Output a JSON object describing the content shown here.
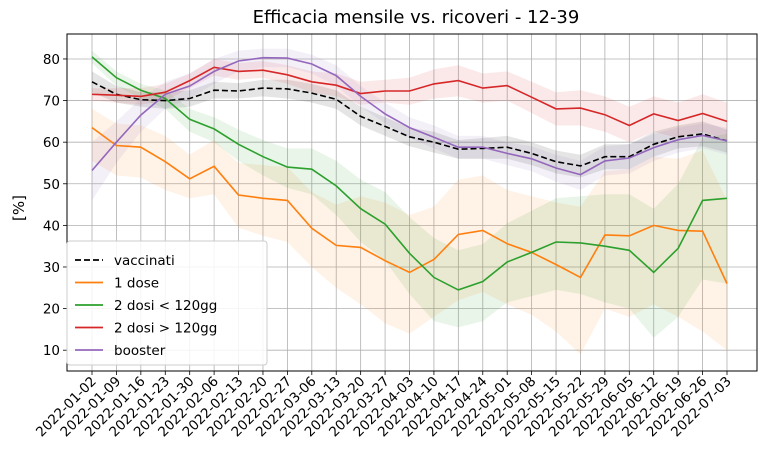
{
  "chart_data": {
    "type": "line",
    "title": "Efficacia mensile vs. ricoveri - 12-39",
    "xlabel": "",
    "ylabel": "[%]",
    "ylim": [
      5,
      86
    ],
    "yticks": [
      10,
      20,
      30,
      40,
      50,
      60,
      70,
      80
    ],
    "grid": true,
    "legend_position": "lower-left",
    "categories": [
      "2022-01-02",
      "2022-01-09",
      "2022-01-16",
      "2022-01-23",
      "2022-01-30",
      "2022-02-06",
      "2022-02-13",
      "2022-02-20",
      "2022-02-27",
      "2022-03-06",
      "2022-03-13",
      "2022-03-20",
      "2022-03-27",
      "2022-04-03",
      "2022-04-10",
      "2022-04-17",
      "2022-04-24",
      "2022-05-01",
      "2022-05-08",
      "2022-05-15",
      "2022-05-22",
      "2022-05-29",
      "2022-06-05",
      "2022-06-12",
      "2022-06-19",
      "2022-06-26",
      "2022-07-03"
    ],
    "series": [
      {
        "name": "vaccinati",
        "color": "#000000",
        "dashed": true,
        "values": [
          74.5,
          71.5,
          70.2,
          70.0,
          70.5,
          72.5,
          72.3,
          73.0,
          72.8,
          71.8,
          70.3,
          66.2,
          63.8,
          61.3,
          60.0,
          58.3,
          58.5,
          58.8,
          57.3,
          55.3,
          54.3,
          56.5,
          56.5,
          59.5,
          61.3,
          62.0,
          60.3
        ],
        "lower": [
          72.0,
          69.5,
          68.5,
          68.0,
          68.5,
          70.5,
          70.5,
          71.0,
          70.5,
          69.5,
          68.0,
          64.0,
          61.5,
          59.0,
          57.5,
          56.0,
          56.0,
          56.0,
          54.5,
          52.5,
          51.5,
          53.5,
          53.5,
          56.5,
          58.5,
          59.0,
          57.5
        ],
        "upper": [
          77.0,
          73.5,
          72.0,
          72.0,
          72.5,
          74.5,
          74.2,
          75.0,
          75.0,
          74.0,
          72.5,
          68.5,
          66.0,
          63.5,
          62.5,
          60.5,
          61.0,
          61.5,
          60.0,
          58.0,
          57.0,
          59.5,
          59.5,
          62.5,
          64.0,
          65.0,
          63.0
        ]
      },
      {
        "name": "1 dose",
        "color": "#ff7f0e",
        "values": [
          63.5,
          59.2,
          58.8,
          55.3,
          51.2,
          54.2,
          47.3,
          46.5,
          46.0,
          39.3,
          35.2,
          34.7,
          31.5,
          28.7,
          31.8,
          37.8,
          38.8,
          35.6,
          33.5,
          30.6,
          27.5,
          37.7,
          37.5,
          40.0,
          38.8,
          38.6,
          26.0
        ],
        "lower": [
          55.5,
          52.0,
          51.5,
          48.5,
          46.5,
          47.5,
          39.5,
          37.5,
          36.0,
          30.0,
          25.0,
          21.0,
          16.5,
          14.0,
          18.0,
          22.0,
          24.0,
          21.0,
          18.5,
          14.5,
          9.0,
          20.0,
          18.0,
          21.0,
          18.0,
          14.5,
          10.0
        ],
        "upper": [
          68.0,
          64.5,
          64.0,
          61.5,
          57.0,
          60.5,
          55.0,
          54.5,
          54.0,
          48.0,
          45.0,
          47.0,
          45.5,
          42.5,
          44.5,
          51.0,
          52.0,
          48.5,
          47.0,
          45.5,
          44.5,
          53.0,
          53.5,
          56.5,
          56.0,
          58.0,
          46.0
        ]
      },
      {
        "name": "2 dosi < 120gg",
        "color": "#2ca02c",
        "values": [
          80.5,
          75.5,
          72.5,
          70.5,
          65.5,
          63.2,
          59.5,
          56.5,
          54.0,
          53.5,
          49.5,
          44.0,
          40.3,
          33.3,
          27.5,
          24.5,
          26.5,
          31.2,
          33.5,
          36.0,
          35.8,
          35.0,
          34.0,
          28.7,
          34.5,
          46.0,
          46.5
        ],
        "lower": [
          79.0,
          73.5,
          70.5,
          68.0,
          62.5,
          60.0,
          55.5,
          52.0,
          49.0,
          47.5,
          42.5,
          36.0,
          31.5,
          23.5,
          17.0,
          15.5,
          17.0,
          21.5,
          23.0,
          24.5,
          23.5,
          21.5,
          20.0,
          13.0,
          18.0,
          27.0,
          26.0
        ],
        "upper": [
          82.0,
          77.0,
          74.0,
          72.5,
          68.0,
          66.0,
          63.0,
          60.5,
          58.5,
          58.5,
          55.5,
          51.0,
          48.0,
          42.0,
          37.0,
          34.0,
          35.5,
          40.5,
          43.5,
          46.5,
          47.0,
          47.5,
          47.5,
          44.0,
          50.0,
          61.0,
          62.0
        ]
      },
      {
        "name": "2 dosi > 120gg",
        "color": "#d62728",
        "values": [
          71.5,
          71.3,
          71.0,
          72.0,
          74.8,
          78.0,
          77.0,
          77.3,
          76.2,
          74.5,
          73.7,
          71.7,
          72.3,
          72.3,
          74.0,
          74.8,
          73.0,
          73.6,
          70.8,
          68.0,
          68.2,
          66.6,
          64.0,
          66.8,
          65.2,
          66.9,
          65.0
        ],
        "lower": [
          70.0,
          69.5,
          69.0,
          70.0,
          73.0,
          76.0,
          75.0,
          75.5,
          74.0,
          72.0,
          71.0,
          69.0,
          69.5,
          69.0,
          70.5,
          71.0,
          69.5,
          70.0,
          67.0,
          64.0,
          64.0,
          62.5,
          60.0,
          62.5,
          61.0,
          62.5,
          60.5
        ],
        "upper": [
          73.0,
          73.0,
          73.0,
          74.0,
          76.5,
          80.0,
          79.0,
          79.5,
          78.5,
          77.0,
          76.5,
          74.5,
          75.0,
          75.5,
          77.5,
          78.5,
          76.5,
          77.0,
          74.5,
          72.0,
          72.5,
          71.0,
          68.5,
          71.0,
          69.5,
          71.5,
          69.5
        ]
      },
      {
        "name": "booster",
        "color": "#9467bd",
        "values": [
          53.2,
          60.0,
          66.5,
          71.5,
          73.5,
          77.0,
          79.5,
          80.3,
          80.2,
          78.8,
          76.0,
          71.0,
          66.8,
          63.5,
          61.2,
          58.8,
          58.8,
          57.3,
          56.0,
          53.8,
          52.2,
          55.5,
          56.2,
          58.7,
          60.6,
          61.6,
          60.3
        ],
        "lower": [
          46.0,
          55.0,
          62.5,
          68.0,
          70.5,
          74.0,
          77.0,
          78.0,
          78.0,
          76.5,
          73.5,
          68.5,
          64.5,
          61.0,
          58.5,
          56.0,
          56.0,
          54.5,
          53.0,
          50.5,
          48.5,
          52.0,
          52.5,
          55.5,
          57.5,
          58.5,
          57.0
        ],
        "upper": [
          60.0,
          65.0,
          70.5,
          74.5,
          76.5,
          80.0,
          82.0,
          82.5,
          82.5,
          81.0,
          78.5,
          73.5,
          69.5,
          66.0,
          64.0,
          61.5,
          61.5,
          60.0,
          59.0,
          57.0,
          55.5,
          59.0,
          59.5,
          62.0,
          63.5,
          64.5,
          63.5
        ]
      }
    ]
  }
}
